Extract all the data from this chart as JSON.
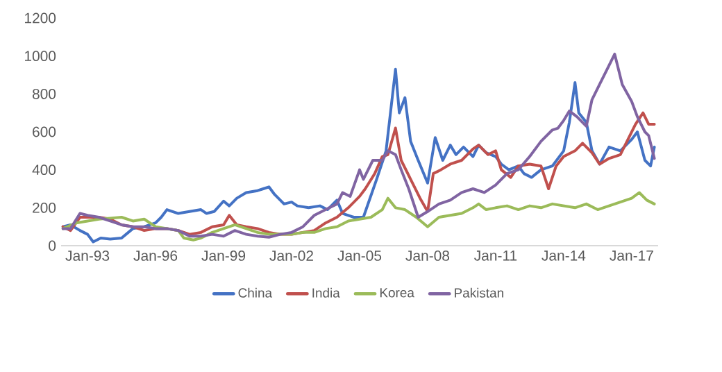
{
  "chart_data": {
    "type": "line",
    "xlim": [
      "1991-11",
      "2018-03"
    ],
    "ylim": [
      0,
      1200
    ],
    "xticks": [
      {
        "value": "1993-01",
        "label": "Jan-93"
      },
      {
        "value": "1996-01",
        "label": "Jan-96"
      },
      {
        "value": "1999-01",
        "label": "Jan-99"
      },
      {
        "value": "2002-01",
        "label": "Jan-02"
      },
      {
        "value": "2005-01",
        "label": "Jan-05"
      },
      {
        "value": "2008-01",
        "label": "Jan-08"
      },
      {
        "value": "2011-01",
        "label": "Jan-11"
      },
      {
        "value": "2014-01",
        "label": "Jan-14"
      },
      {
        "value": "2017-01",
        "label": "Jan-17"
      }
    ],
    "yticks": [
      0,
      200,
      400,
      600,
      800,
      1000,
      1200
    ],
    "grid": false,
    "legend": "bottom",
    "line_style": "solid",
    "series": [
      {
        "name": "China",
        "color": "#4472c4",
        "x": [
          "1991-12",
          "1992-04",
          "1992-09",
          "1993-01",
          "1993-04",
          "1993-08",
          "1994-01",
          "1994-07",
          "1995-01",
          "1995-07",
          "1996-01",
          "1996-04",
          "1996-07",
          "1997-01",
          "1997-07",
          "1998-01",
          "1998-04",
          "1998-08",
          "1999-01",
          "1999-04",
          "1999-08",
          "2000-01",
          "2000-07",
          "2000-10",
          "2001-01",
          "2001-04",
          "2001-09",
          "2002-01",
          "2002-04",
          "2002-10",
          "2003-04",
          "2003-08",
          "2004-01",
          "2004-04",
          "2004-10",
          "2005-03",
          "2005-10",
          "2006-03",
          "2006-08",
          "2006-10",
          "2007-01",
          "2007-04",
          "2007-08",
          "2008-01",
          "2008-05",
          "2008-09",
          "2009-01",
          "2009-04",
          "2009-08",
          "2010-01",
          "2010-04",
          "2010-08",
          "2011-01",
          "2011-04",
          "2011-08",
          "2012-01",
          "2012-04",
          "2012-08",
          "2013-01",
          "2013-07",
          "2014-01",
          "2014-04",
          "2014-07",
          "2014-09",
          "2015-01",
          "2015-04",
          "2015-08",
          "2016-01",
          "2016-07",
          "2017-01",
          "2017-04",
          "2017-08",
          "2017-11",
          "2018-01"
        ],
        "values": [
          100,
          110,
          80,
          60,
          20,
          40,
          35,
          40,
          90,
          100,
          120,
          150,
          190,
          170,
          180,
          190,
          170,
          180,
          235,
          210,
          250,
          280,
          290,
          300,
          310,
          270,
          220,
          230,
          210,
          200,
          210,
          190,
          240,
          170,
          150,
          150,
          350,
          500,
          930,
          700,
          780,
          550,
          450,
          330,
          570,
          450,
          530,
          480,
          520,
          470,
          530,
          490,
          470,
          430,
          400,
          420,
          380,
          360,
          400,
          420,
          500,
          650,
          860,
          700,
          650,
          500,
          430,
          520,
          500,
          560,
          600,
          450,
          420,
          520
        ]
      },
      {
        "name": "India",
        "color": "#c0504d",
        "x": [
          "1991-12",
          "1992-04",
          "1992-09",
          "1993-01",
          "1993-07",
          "1994-01",
          "1994-07",
          "1995-01",
          "1995-07",
          "1996-01",
          "1996-07",
          "1997-01",
          "1997-07",
          "1998-01",
          "1998-07",
          "1999-01",
          "1999-04",
          "1999-08",
          "2000-01",
          "2000-07",
          "2001-01",
          "2001-07",
          "2002-01",
          "2002-07",
          "2003-01",
          "2003-07",
          "2004-01",
          "2004-07",
          "2005-01",
          "2005-04",
          "2005-09",
          "2006-01",
          "2006-04",
          "2006-08",
          "2006-11",
          "2007-04",
          "2007-09",
          "2008-01",
          "2008-04",
          "2008-08",
          "2009-01",
          "2009-07",
          "2010-01",
          "2010-04",
          "2010-09",
          "2011-01",
          "2011-04",
          "2011-09",
          "2012-01",
          "2012-07",
          "2013-01",
          "2013-05",
          "2013-09",
          "2014-01",
          "2014-07",
          "2014-11",
          "2015-04",
          "2015-08",
          "2016-01",
          "2016-07",
          "2016-11",
          "2017-03",
          "2017-07",
          "2017-10",
          "2018-01"
        ],
        "values": [
          100,
          80,
          150,
          150,
          150,
          140,
          110,
          100,
          80,
          90,
          90,
          80,
          60,
          70,
          100,
          110,
          160,
          110,
          100,
          90,
          70,
          60,
          60,
          70,
          80,
          120,
          150,
          200,
          260,
          300,
          380,
          470,
          480,
          620,
          450,
          350,
          250,
          180,
          380,
          400,
          430,
          450,
          510,
          530,
          480,
          500,
          400,
          360,
          420,
          430,
          420,
          300,
          420,
          470,
          500,
          540,
          490,
          430,
          460,
          480,
          560,
          640,
          700,
          640,
          640
        ]
      },
      {
        "name": "Korea",
        "color": "#9bbb59",
        "x": [
          "1991-12",
          "1992-07",
          "1993-01",
          "1993-07",
          "1994-01",
          "1994-07",
          "1995-01",
          "1995-07",
          "1996-01",
          "1996-07",
          "1997-01",
          "1997-04",
          "1997-09",
          "1998-01",
          "1998-07",
          "1999-01",
          "1999-07",
          "2000-01",
          "2000-07",
          "2001-01",
          "2001-07",
          "2002-01",
          "2002-07",
          "2003-01",
          "2003-07",
          "2004-01",
          "2004-07",
          "2005-01",
          "2005-07",
          "2006-01",
          "2006-04",
          "2006-08",
          "2007-01",
          "2007-07",
          "2008-01",
          "2008-07",
          "2009-01",
          "2009-07",
          "2010-01",
          "2010-04",
          "2010-08",
          "2011-01",
          "2011-07",
          "2012-01",
          "2012-07",
          "2013-01",
          "2013-07",
          "2014-01",
          "2014-07",
          "2015-01",
          "2015-07",
          "2016-01",
          "2016-07",
          "2017-01",
          "2017-05",
          "2017-09",
          "2018-01"
        ],
        "values": [
          90,
          120,
          130,
          140,
          145,
          150,
          130,
          140,
          100,
          90,
          80,
          40,
          30,
          40,
          70,
          90,
          110,
          90,
          70,
          60,
          60,
          60,
          70,
          70,
          90,
          100,
          130,
          140,
          150,
          190,
          250,
          200,
          190,
          150,
          100,
          150,
          160,
          170,
          200,
          220,
          190,
          200,
          210,
          190,
          210,
          200,
          220,
          210,
          200,
          220,
          190,
          210,
          230,
          250,
          280,
          240,
          220
        ]
      },
      {
        "name": "Pakistan",
        "color": "#8064a2",
        "x": [
          "1991-12",
          "1992-04",
          "1992-09",
          "1993-01",
          "1993-07",
          "1994-01",
          "1994-07",
          "1995-01",
          "1995-07",
          "1996-01",
          "1996-07",
          "1997-01",
          "1997-07",
          "1998-01",
          "1998-07",
          "1999-01",
          "1999-07",
          "2000-01",
          "2000-07",
          "2001-01",
          "2001-07",
          "2002-01",
          "2002-07",
          "2003-01",
          "2003-07",
          "2004-01",
          "2004-04",
          "2004-08",
          "2005-01",
          "2005-03",
          "2005-08",
          "2006-01",
          "2006-04",
          "2006-08",
          "2006-11",
          "2007-03",
          "2007-08",
          "2008-01",
          "2008-07",
          "2009-01",
          "2009-07",
          "2010-01",
          "2010-07",
          "2011-01",
          "2011-07",
          "2012-01",
          "2012-07",
          "2013-01",
          "2013-07",
          "2013-10",
          "2014-01",
          "2014-04",
          "2014-08",
          "2015-01",
          "2015-04",
          "2015-08",
          "2016-01",
          "2016-04",
          "2016-08",
          "2017-01",
          "2017-04",
          "2017-08",
          "2017-10",
          "2018-01"
        ],
        "values": [
          90,
          90,
          170,
          160,
          150,
          130,
          110,
          100,
          100,
          90,
          90,
          80,
          50,
          50,
          60,
          50,
          80,
          60,
          50,
          45,
          60,
          70,
          100,
          160,
          190,
          220,
          280,
          260,
          400,
          350,
          450,
          450,
          500,
          480,
          400,
          300,
          150,
          180,
          220,
          240,
          280,
          300,
          280,
          320,
          380,
          400,
          470,
          550,
          610,
          620,
          660,
          710,
          680,
          630,
          770,
          850,
          950,
          1010,
          850,
          760,
          680,
          600,
          580,
          460
        ]
      }
    ]
  }
}
